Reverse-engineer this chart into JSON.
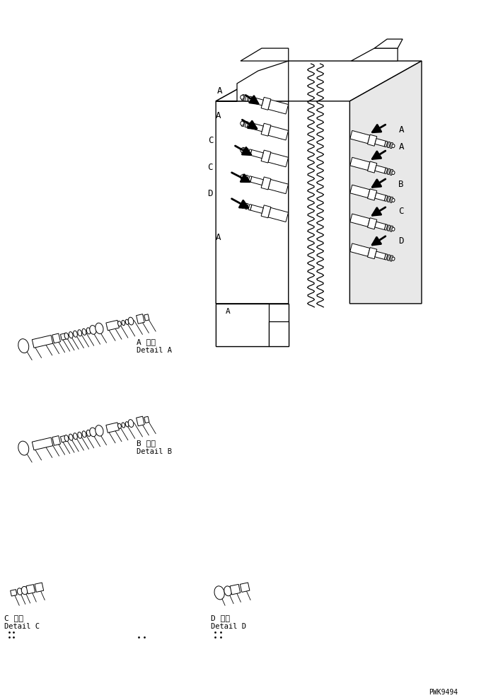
{
  "bg_color": "#ffffff",
  "line_color": "#000000",
  "watermark": "PWK9494",
  "figsize": [
    6.87,
    9.87
  ],
  "dpi": 100,
  "labels": {
    "detail_a_jp": "A 詳細",
    "detail_a_en": "Detail A",
    "detail_b_jp": "B 詳細",
    "detail_b_en": "Detail B",
    "detail_c_jp": "C 詳細",
    "detail_c_en": "Detail C",
    "detail_d_jp": "D 詳細",
    "detail_d_en": "Detail D"
  }
}
